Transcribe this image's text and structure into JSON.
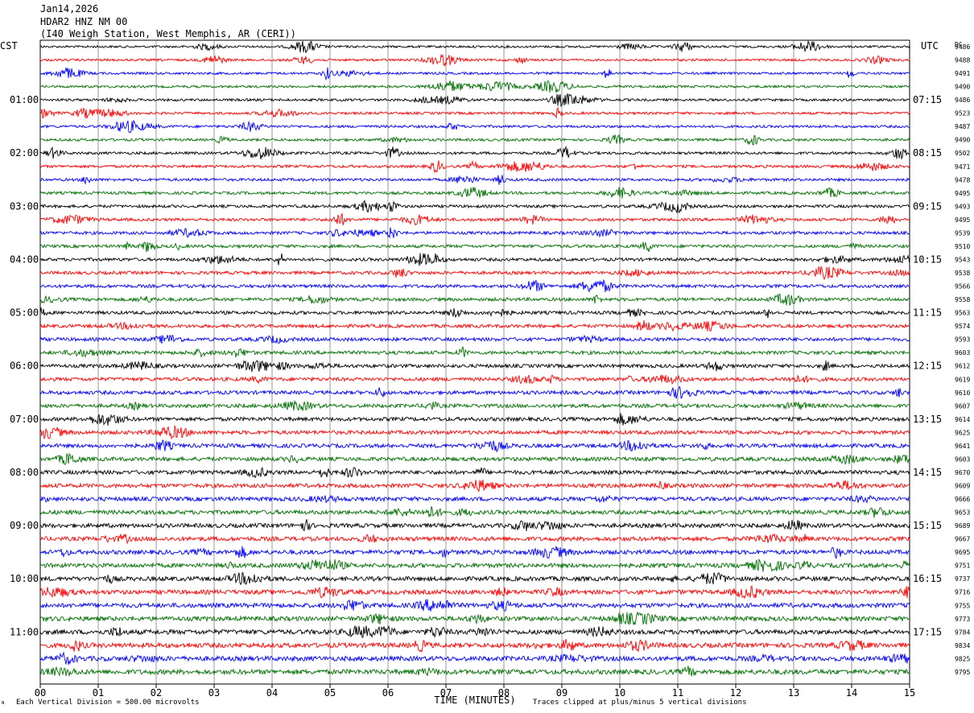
{
  "header": {
    "date": "Jan14,2026",
    "station": "HDAR2 HNZ NM 00",
    "location": "(I40 Weigh Station, West Memphis, AR (CERI))"
  },
  "left_zone_label": "CST",
  "right_zone_label": "UTC",
  "dc_header": "DC",
  "footer": {
    "scale": "Each Vertical Division =   500.00 microvolts",
    "clip": "Traces clipped at plus/minus 5 vertical divisions",
    "corner_mark": "ᴺ"
  },
  "colors": {
    "cycle": [
      "#000000",
      "#ff0000",
      "#0000ff",
      "#007000"
    ],
    "grid": "#000000",
    "background": "#ffffff"
  },
  "chart_data": {
    "type": "line",
    "title": "Jan14,2026 HDAR2 HNZ NM 00",
    "xlabel": "TIME (MINUTES)",
    "x_ticks": [
      "00",
      "01",
      "02",
      "03",
      "04",
      "05",
      "06",
      "07",
      "08",
      "09",
      "10",
      "11",
      "12",
      "13",
      "14",
      "15"
    ],
    "xlim": [
      0,
      15
    ],
    "rows_per_hour": 4,
    "left_hour_labels": [
      "01:00",
      "02:00",
      "03:00",
      "04:00",
      "05:00",
      "06:00",
      "07:00",
      "08:00",
      "09:00",
      "10:00",
      "11:00"
    ],
    "right_hour_labels": [
      "07:15",
      "08:15",
      "09:15",
      "10:15",
      "11:15",
      "12:15",
      "13:15",
      "14:15",
      "15:15",
      "16:15",
      "17:15"
    ],
    "first_labeled_row": 4,
    "dc_offsets": [
      9486,
      9488,
      9491,
      9490,
      9486,
      9523,
      9487,
      9490,
      9502,
      9471,
      9478,
      9495,
      9493,
      9495,
      9539,
      9510,
      9543,
      9538,
      9566,
      9558,
      9563,
      9574,
      9593,
      9603,
      9612,
      9619,
      9610,
      9607,
      9614,
      9625,
      9641,
      9603,
      9670,
      9609,
      9666,
      9653,
      9689,
      9667,
      9695,
      9751,
      9737,
      9716,
      9755,
      9773,
      9784,
      9834,
      9825,
      9795
    ],
    "grid": true
  }
}
